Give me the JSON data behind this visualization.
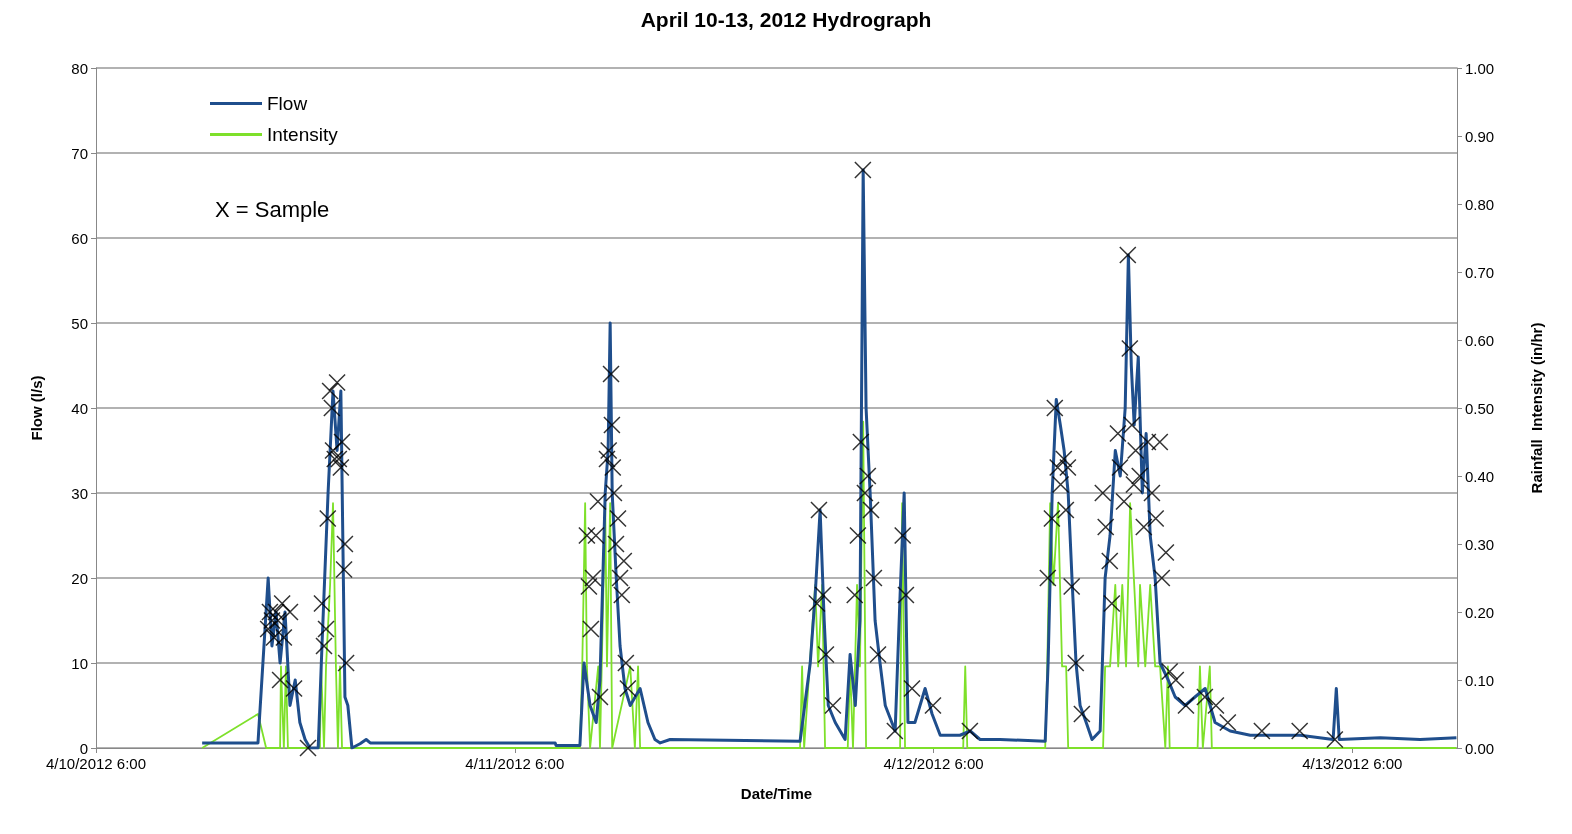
{
  "chart_data": {
    "type": "line",
    "title": "April 10-13, 2012 Hydrograph",
    "xlabel": "Date/Time",
    "ylabel": "Flow (l/s)",
    "y2label": "Rainfall  Intensity (in/hr)",
    "annotations": [
      "X = Sample"
    ],
    "xlim": [
      "2012-04-10T06:00",
      "2012-04-13T12:00"
    ],
    "xticks": [
      {
        "value": "2012-04-10T06:00",
        "label": "4/10/2012 6:00"
      },
      {
        "value": "2012-04-11T06:00",
        "label": "4/11/2012 6:00"
      },
      {
        "value": "2012-04-12T06:00",
        "label": "4/12/2012 6:00"
      },
      {
        "value": "2012-04-13T06:00",
        "label": "4/13/2012 6:00"
      }
    ],
    "ylim": [
      0,
      80
    ],
    "yticks": [
      0,
      10,
      20,
      30,
      40,
      50,
      60,
      70,
      80
    ],
    "y2lim": [
      0,
      1
    ],
    "y2ticks": [
      {
        "value": 0,
        "label": "0.00"
      },
      {
        "value": 0.1,
        "label": "0.10"
      },
      {
        "value": 0.2,
        "label": "0.20"
      },
      {
        "value": 0.3,
        "label": "0.30"
      },
      {
        "value": 0.4,
        "label": "0.40"
      },
      {
        "value": 0.5,
        "label": "0.50"
      },
      {
        "value": 0.6,
        "label": "0.60"
      },
      {
        "value": 0.7,
        "label": "0.70"
      },
      {
        "value": 0.8,
        "label": "0.80"
      },
      {
        "value": 0.9,
        "label": "0.90"
      },
      {
        "value": 1,
        "label": "1.00"
      }
    ],
    "grid": "y",
    "legend": "top left",
    "series": [
      {
        "name": "Flow",
        "color": "#1f4e8c",
        "marker": "none",
        "x": [
          "2012-04-10T12:05",
          "2012-04-10T15:17",
          "2012-04-10T15:52",
          "2012-04-10T16:05",
          "2012-04-10T16:19",
          "2012-04-10T16:33",
          "2012-04-10T16:50",
          "2012-04-10T17:07",
          "2012-04-10T17:25",
          "2012-04-10T17:41",
          "2012-04-10T17:59",
          "2012-04-10T18:16",
          "2012-04-10T18:44",
          "2012-04-10T18:57",
          "2012-04-10T19:18",
          "2012-04-10T19:35",
          "2012-04-10T19:49",
          "2012-04-10T20:02",
          "2012-04-10T20:16",
          "2012-04-10T20:26",
          "2012-04-10T20:40",
          "2012-04-10T21:08",
          "2012-04-10T21:29",
          "2012-04-10T21:43",
          "2012-04-11T08:19",
          "2012-04-11T08:22",
          "2012-04-11T09:44",
          "2012-04-11T09:58",
          "2012-04-11T10:19",
          "2012-04-11T10:40",
          "2012-04-11T10:53",
          "2012-04-11T11:11",
          "2012-04-11T11:21",
          "2012-04-11T11:28",
          "2012-04-11T11:35",
          "2012-04-11T11:49",
          "2012-04-11T12:02",
          "2012-04-11T12:19",
          "2012-04-11T12:37",
          "2012-04-11T13:11",
          "2012-04-11T13:38",
          "2012-04-11T14:02",
          "2012-04-11T14:20",
          "2012-04-11T14:54",
          "2012-04-11T22:21",
          "2012-04-11T22:56",
          "2012-04-11T23:13",
          "2012-04-11T23:30",
          "2012-04-11T23:44",
          "2012-04-11T23:58",
          "2012-04-12T00:22",
          "2012-04-12T00:56",
          "2012-04-12T01:13",
          "2012-04-12T01:31",
          "2012-04-12T01:47",
          "2012-04-12T01:58",
          "2012-04-12T02:08",
          "2012-04-12T02:22",
          "2012-04-12T02:39",
          "2012-04-12T02:56",
          "2012-04-12T03:14",
          "2012-04-12T03:48",
          "2012-04-12T04:05",
          "2012-04-12T04:19",
          "2012-04-12T04:32",
          "2012-04-12T04:56",
          "2012-04-12T05:31",
          "2012-04-12T05:55",
          "2012-04-12T06:23",
          "2012-04-12T07:31",
          "2012-04-12T08:06",
          "2012-04-12T08:40",
          "2012-04-12T09:49",
          "2012-04-12T12:24",
          "2012-04-12T12:34",
          "2012-04-12T12:48",
          "2012-04-12T13:02",
          "2012-04-12T13:16",
          "2012-04-12T13:29",
          "2012-04-12T13:43",
          "2012-04-12T13:56",
          "2012-04-12T14:10",
          "2012-04-12T14:24",
          "2012-04-12T14:45",
          "2012-04-12T15:05",
          "2012-04-12T15:33",
          "2012-04-12T15:50",
          "2012-04-12T16:07",
          "2012-04-12T16:25",
          "2012-04-12T16:42",
          "2012-04-12T16:59",
          "2012-04-12T17:10",
          "2012-04-12T17:20",
          "2012-04-12T17:30",
          "2012-04-12T17:44",
          "2012-04-12T17:58",
          "2012-04-12T18:11",
          "2012-04-12T18:25",
          "2012-04-12T18:42",
          "2012-04-12T18:59",
          "2012-04-12T19:27",
          "2012-04-12T19:51",
          "2012-04-12T20:25",
          "2012-04-12T20:59",
          "2012-04-12T21:34",
          "2012-04-12T22:08",
          "2012-04-12T23:00",
          "2012-04-13T00:09",
          "2012-04-13T03:01",
          "2012-04-13T04:54",
          "2012-04-13T05:05",
          "2012-04-13T05:15",
          "2012-04-13T07:36",
          "2012-04-13T09:53",
          "2012-04-13T11:58"
        ],
        "values": [
          0.6,
          0.6,
          20,
          12,
          16,
          10,
          16,
          5,
          8,
          3,
          1,
          0,
          0,
          12,
          30,
          42,
          35,
          42,
          6,
          5,
          0,
          0.5,
          1,
          0.6,
          0.6,
          0.3,
          0.3,
          10,
          5,
          3,
          8,
          30,
          35,
          50,
          30,
          20,
          12,
          7,
          5,
          7,
          3,
          1,
          0.6,
          1,
          0.8,
          10,
          18,
          28,
          15,
          5,
          3,
          1,
          11,
          5,
          15,
          68,
          40,
          30,
          15,
          10,
          5,
          2,
          18,
          30,
          3,
          3,
          7,
          4,
          1.5,
          1.5,
          2,
          1,
          1,
          0.8,
          10,
          30,
          41,
          38,
          35,
          30,
          20,
          10,
          5,
          3,
          1,
          2,
          20,
          25,
          35,
          32,
          40,
          58,
          45,
          38,
          46,
          30,
          37,
          25,
          20,
          10,
          8,
          6,
          5,
          6,
          7,
          3,
          2,
          1.5,
          1.5,
          1,
          7,
          1,
          1.2,
          1,
          1.2
        ]
      },
      {
        "name": "Intensity",
        "axis": "y2",
        "color": "#7ee02a",
        "marker": "none",
        "x": [
          "2012-04-10T12:05",
          "2012-04-10T15:17",
          "2012-04-10T15:45",
          "2012-04-10T16:33",
          "2012-04-10T16:36",
          "2012-04-10T16:46",
          "2012-04-10T16:53",
          "2012-04-10T17:00",
          "2012-04-10T18:50",
          "2012-04-10T18:54",
          "2012-04-10T19:04",
          "2012-04-10T19:11",
          "2012-04-10T19:25",
          "2012-04-10T19:35",
          "2012-04-10T19:45",
          "2012-04-10T19:52",
          "2012-04-10T19:59",
          "2012-04-10T20:06",
          "2012-04-11T09:44",
          "2012-04-11T09:52",
          "2012-04-11T10:02",
          "2012-04-11T10:08",
          "2012-04-11T10:19",
          "2012-04-11T10:47",
          "2012-04-11T10:53",
          "2012-04-11T11:11",
          "2012-04-11T11:17",
          "2012-04-11T11:28",
          "2012-04-11T11:35",
          "2012-04-11T12:37",
          "2012-04-11T12:53",
          "2012-04-11T13:04",
          "2012-04-11T13:11",
          "2012-04-11T22:21",
          "2012-04-11T22:28",
          "2012-04-11T22:35",
          "2012-04-11T23:13",
          "2012-04-11T23:23",
          "2012-04-11T23:37",
          "2012-04-11T23:47",
          "2012-04-12T01:05",
          "2012-04-12T01:13",
          "2012-04-12T01:23",
          "2012-04-12T01:37",
          "2012-04-12T01:47",
          "2012-04-12T01:58",
          "2012-04-12T02:08",
          "2012-04-12T04:05",
          "2012-04-12T04:12",
          "2012-04-12T04:22",
          "2012-04-12T07:42",
          "2012-04-12T07:49",
          "2012-04-12T07:56",
          "2012-04-12T12:24",
          "2012-04-12T12:31",
          "2012-04-12T12:41",
          "2012-04-12T12:52",
          "2012-04-12T13:08",
          "2012-04-12T13:22",
          "2012-04-12T13:36",
          "2012-04-12T13:43",
          "2012-04-12T15:43",
          "2012-04-12T15:50",
          "2012-04-12T16:07",
          "2012-04-12T16:25",
          "2012-04-12T16:35",
          "2012-04-12T16:49",
          "2012-04-12T17:02",
          "2012-04-12T17:16",
          "2012-04-12T17:30",
          "2012-04-12T17:44",
          "2012-04-12T17:50",
          "2012-04-12T18:08",
          "2012-04-12T18:25",
          "2012-04-12T18:42",
          "2012-04-12T18:59",
          "2012-04-12T19:17",
          "2012-04-12T19:26",
          "2012-04-12T19:32",
          "2012-04-12T21:08",
          "2012-04-12T21:16",
          "2012-04-12T21:26",
          "2012-04-12T21:50",
          "2012-04-12T21:57",
          "2012-04-13T11:58"
        ],
        "values": [
          0,
          0.05,
          0,
          0,
          0.12,
          0,
          0.12,
          0,
          0,
          0.12,
          0,
          0.12,
          0.24,
          0.36,
          0.12,
          0,
          0.12,
          0,
          0,
          0.12,
          0.36,
          0.12,
          0,
          0.12,
          0,
          0.36,
          0.12,
          0.36,
          0,
          0.12,
          0,
          0.12,
          0,
          0,
          0.12,
          0,
          0.24,
          0.12,
          0.24,
          0,
          0,
          0.12,
          0,
          0.24,
          0.12,
          0.48,
          0,
          0,
          0.36,
          0,
          0,
          0.12,
          0,
          0,
          0.12,
          0.36,
          0.24,
          0.36,
          0.12,
          0.12,
          0,
          0,
          0.12,
          0.12,
          0.24,
          0.12,
          0.24,
          0.12,
          0.36,
          0.24,
          0.12,
          0.24,
          0.12,
          0.24,
          0.12,
          0.12,
          0,
          0.12,
          0,
          0,
          0.12,
          0,
          0.12,
          0,
          0
        ]
      },
      {
        "type": "scatter",
        "color": "#000000",
        "marker": "cross",
        "x": [
          "2012-04-10T15:52",
          "2012-04-10T15:58",
          "2012-04-10T16:05",
          "2012-04-10T16:12",
          "2012-04-10T16:19",
          "2012-04-10T16:26",
          "2012-04-10T16:33",
          "2012-04-10T16:40",
          "2012-04-10T16:46",
          "2012-04-10T17:07",
          "2012-04-10T17:21",
          "2012-04-10T18:09",
          "2012-04-10T18:57",
          "2012-04-10T19:04",
          "2012-04-10T19:11",
          "2012-04-10T19:17",
          "2012-04-10T19:25",
          "2012-04-10T19:31",
          "2012-04-10T19:35",
          "2012-04-10T19:41",
          "2012-04-10T19:49",
          "2012-04-10T19:55",
          "2012-04-10T20:02",
          "2012-04-10T20:06",
          "2012-04-10T20:13",
          "2012-04-10T20:16",
          "2012-04-10T20:20",
          "2012-04-11T10:08",
          "2012-04-11T10:15",
          "2012-04-11T10:22",
          "2012-04-11T10:29",
          "2012-04-11T10:39",
          "2012-04-11T10:46",
          "2012-04-11T10:53",
          "2012-04-11T11:17",
          "2012-04-11T11:23",
          "2012-04-11T11:31",
          "2012-04-11T11:34",
          "2012-04-11T11:37",
          "2012-04-11T11:41",
          "2012-04-11T11:48",
          "2012-04-11T11:55",
          "2012-04-11T12:02",
          "2012-04-11T12:08",
          "2012-04-11T12:15",
          "2012-04-11T12:22",
          "2012-04-11T12:29",
          "2012-04-11T23:19",
          "2012-04-11T23:26",
          "2012-04-11T23:40",
          "2012-04-11T23:50",
          "2012-04-12T00:14",
          "2012-04-12T01:29",
          "2012-04-12T01:40",
          "2012-04-12T01:50",
          "2012-04-12T01:57",
          "2012-04-12T02:04",
          "2012-04-12T02:14",
          "2012-04-12T02:25",
          "2012-04-12T02:35",
          "2012-04-12T02:49",
          "2012-04-12T03:47",
          "2012-04-12T04:14",
          "2012-04-12T04:25",
          "2012-04-12T04:46",
          "2012-04-12T05:58",
          "2012-04-12T08:05",
          "2012-04-12T12:33",
          "2012-04-12T12:47",
          "2012-04-12T12:57",
          "2012-04-12T13:07",
          "2012-04-12T13:17",
          "2012-04-12T13:28",
          "2012-04-12T13:35",
          "2012-04-12T13:42",
          "2012-04-12T13:55",
          "2012-04-12T14:09",
          "2012-04-12T14:30",
          "2012-04-12T15:42",
          "2012-04-12T15:52",
          "2012-04-12T16:06",
          "2012-04-12T16:13",
          "2012-04-12T16:34",
          "2012-04-12T16:41",
          "2012-04-12T16:55",
          "2012-04-12T17:08",
          "2012-04-12T17:15",
          "2012-04-12T17:22",
          "2012-04-12T17:29",
          "2012-04-12T17:35",
          "2012-04-12T17:49",
          "2012-04-12T18:03",
          "2012-04-12T18:17",
          "2012-04-12T18:31",
          "2012-04-12T18:44",
          "2012-04-12T18:58",
          "2012-04-12T19:05",
          "2012-04-12T19:19",
          "2012-04-12T19:32",
          "2012-04-12T19:53",
          "2012-04-12T20:28",
          "2012-04-12T21:33",
          "2012-04-12T22:11",
          "2012-04-12T22:52",
          "2012-04-13T00:49",
          "2012-04-13T02:59",
          "2012-04-13T05:00"
        ],
        "values": [
          14,
          16,
          15,
          13,
          16,
          15,
          8,
          17,
          13,
          16,
          7,
          0,
          17,
          12,
          14,
          27,
          42,
          40,
          35,
          34,
          43,
          34,
          33,
          36,
          21,
          24,
          10,
          25,
          19,
          14,
          20,
          25,
          29,
          6,
          34,
          35,
          44,
          38,
          33,
          30,
          24,
          27,
          20,
          18,
          22,
          10,
          7,
          17,
          28,
          18,
          11,
          5,
          18,
          25,
          36,
          68,
          30,
          32,
          28,
          20,
          11,
          2,
          25,
          18,
          7,
          5,
          2,
          20,
          27,
          40,
          33,
          31,
          34,
          28,
          33,
          19,
          10,
          4,
          30,
          26,
          22,
          17,
          37,
          33,
          29,
          58,
          47,
          38,
          31,
          35,
          32,
          26,
          36,
          30,
          27,
          36,
          20,
          23,
          9,
          8,
          5,
          6,
          5,
          3,
          2,
          2,
          1
        ]
      }
    ]
  }
}
